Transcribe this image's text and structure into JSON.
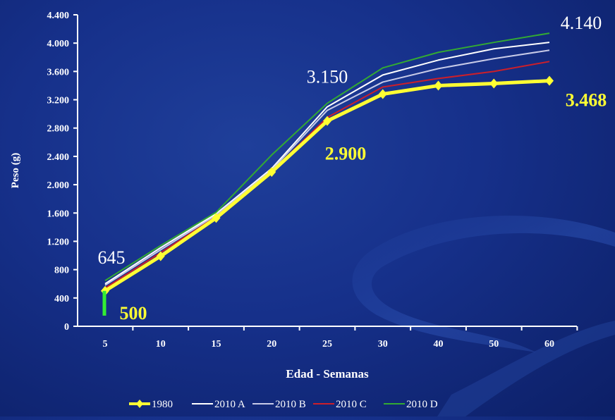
{
  "chart_data": {
    "type": "line",
    "xlabel": "Edad - Semanas",
    "ylabel": "Peso (g)",
    "categories": [
      "5",
      "10",
      "15",
      "20",
      "25",
      "30",
      "40",
      "50",
      "60"
    ],
    "ylim": [
      0,
      4400
    ],
    "yticks": [
      0,
      400,
      800,
      1200,
      1600,
      2000,
      2400,
      2800,
      3200,
      3600,
      4000,
      4400
    ],
    "ytick_labels": [
      "0",
      "400",
      "800",
      "1.200",
      "1.600",
      "2.000",
      "2.400",
      "2.800",
      "3.200",
      "3.600",
      "4.000",
      "4.400"
    ],
    "grid": false,
    "legend_position": "bottom",
    "series": [
      {
        "name": "1980",
        "color": "#ffff33",
        "markers": true,
        "values": [
          500,
          990,
          1530,
          2180,
          2900,
          3280,
          3400,
          3430,
          3468
        ]
      },
      {
        "name": "2010 A",
        "color": "#ffffff",
        "markers": false,
        "values": [
          600,
          1110,
          1590,
          2230,
          3100,
          3550,
          3760,
          3920,
          4010
        ]
      },
      {
        "name": "2010 B",
        "color": "#c8cbe8",
        "markers": false,
        "values": [
          580,
          1080,
          1570,
          2210,
          3050,
          3450,
          3640,
          3780,
          3900
        ]
      },
      {
        "name": "2010 C",
        "color": "#cc1f2a",
        "markers": false,
        "values": [
          540,
          1040,
          1550,
          2190,
          2950,
          3380,
          3500,
          3600,
          3740
        ]
      },
      {
        "name": "2010 D",
        "color": "#33aa33",
        "markers": false,
        "values": [
          645,
          1140,
          1610,
          2420,
          3150,
          3650,
          3870,
          4010,
          4140
        ]
      }
    ],
    "annotations": [
      {
        "text": "645",
        "color": "#ffffff"
      },
      {
        "text": "500",
        "color": "#ffff33"
      },
      {
        "text": "3.150",
        "color": "#ffffff"
      },
      {
        "text": "2.900",
        "color": "#ffff33"
      },
      {
        "text": "4.140",
        "color": "#ffffff"
      },
      {
        "text": "3.468",
        "color": "#ffff33"
      }
    ],
    "start_marker_color": "#33ee33"
  }
}
